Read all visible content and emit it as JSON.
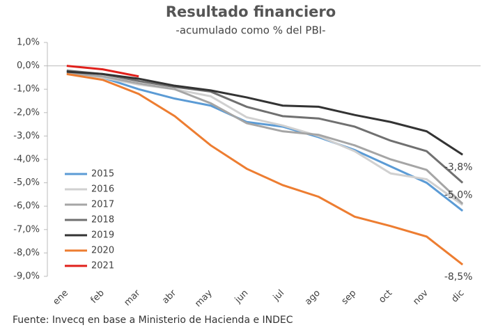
{
  "chart_data": {
    "type": "line",
    "title": "Resultado financiero",
    "subtitle": "-acumulado como % del PBI-",
    "source": "Fuente: Invecq en base a Ministerio de Hacienda e INDEC",
    "categories": [
      "ene",
      "feb",
      "mar",
      "abr",
      "may",
      "jun",
      "jul",
      "ago",
      "sep",
      "oct",
      "nov",
      "dic"
    ],
    "ylim": [
      -9,
      1
    ],
    "yticks": [
      {
        "value": 1,
        "label": "1,0%"
      },
      {
        "value": 0,
        "label": "0,0%"
      },
      {
        "value": -1,
        "label": "-1,0%"
      },
      {
        "value": -2,
        "label": "-2,0%"
      },
      {
        "value": -3,
        "label": "-3,0%"
      },
      {
        "value": -4,
        "label": "-4,0%"
      },
      {
        "value": -5,
        "label": "-5,0%"
      },
      {
        "value": -6,
        "label": "-6,0%"
      },
      {
        "value": -7,
        "label": "-7,0%"
      },
      {
        "value": -8,
        "label": "-8,0%"
      },
      {
        "value": -9,
        "label": "-9,0%"
      }
    ],
    "series": [
      {
        "name": "2015",
        "color": "#5b9bd5",
        "values": [
          -0.2,
          -0.5,
          -1.0,
          -1.4,
          -1.7,
          -2.4,
          -2.6,
          -3.05,
          -3.6,
          -4.3,
          -5.0,
          -6.2
        ]
      },
      {
        "name": "2016",
        "color": "#d0d0d0",
        "values": [
          -0.3,
          -0.5,
          -0.8,
          -1.0,
          -1.3,
          -2.2,
          -2.55,
          -3.0,
          -3.65,
          -4.6,
          -4.85,
          -5.95
        ]
      },
      {
        "name": "2017",
        "color": "#a5a5a5",
        "values": [
          -0.3,
          -0.45,
          -0.75,
          -1.0,
          -1.6,
          -2.45,
          -2.8,
          -2.95,
          -3.4,
          -4.0,
          -4.45,
          -5.9
        ]
      },
      {
        "name": "2018",
        "color": "#707070",
        "values": [
          -0.2,
          -0.35,
          -0.65,
          -0.9,
          -1.1,
          -1.75,
          -2.15,
          -2.25,
          -2.6,
          -3.2,
          -3.65,
          -5.0
        ],
        "value_labels": [
          null,
          null,
          null,
          null,
          null,
          null,
          null,
          null,
          null,
          null,
          null,
          "-5,0%"
        ]
      },
      {
        "name": "2019",
        "color": "#333333",
        "values": [
          -0.25,
          -0.35,
          -0.55,
          -0.85,
          -1.05,
          -1.35,
          -1.7,
          -1.75,
          -2.1,
          -2.4,
          -2.8,
          -3.8
        ],
        "value_labels": [
          null,
          null,
          null,
          null,
          null,
          null,
          null,
          null,
          null,
          null,
          null,
          "-3,8%"
        ]
      },
      {
        "name": "2020",
        "color": "#ed7d31",
        "values": [
          -0.35,
          -0.6,
          -1.2,
          -2.15,
          -3.4,
          -4.4,
          -5.1,
          -5.6,
          -6.45,
          -6.85,
          -7.3,
          -8.5
        ],
        "value_labels": [
          null,
          null,
          null,
          null,
          null,
          null,
          null,
          null,
          null,
          null,
          null,
          "-8,5%"
        ]
      },
      {
        "name": "2021",
        "color": "#e0201b",
        "values": [
          0.0,
          -0.15,
          -0.45,
          null,
          null,
          null,
          null,
          null,
          null,
          null,
          null,
          null
        ]
      }
    ]
  }
}
